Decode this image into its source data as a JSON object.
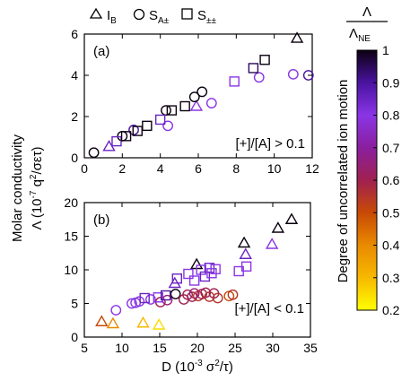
{
  "chart_data": [
    {
      "type": "scatter",
      "panel_label": "(a)",
      "annotation": "[+]/[A] > 0.1",
      "xlim": [
        0,
        12
      ],
      "ylim": [
        0,
        6
      ],
      "xticks": [
        0,
        2,
        4,
        6,
        8,
        10,
        12
      ],
      "yticks": [
        0,
        2,
        4,
        6
      ],
      "series": [
        {
          "name": "I_B",
          "marker": "triangle",
          "points": [
            {
              "x": 1.3,
              "y": 0.55,
              "c": 0.85
            },
            {
              "x": 5.9,
              "y": 2.5,
              "c": 0.8
            },
            {
              "x": 11.2,
              "y": 5.8,
              "c": 1.0
            }
          ]
        },
        {
          "name": "S_A±",
          "marker": "circle",
          "points": [
            {
              "x": 0.5,
              "y": 0.25,
              "c": 1.0
            },
            {
              "x": 2.0,
              "y": 1.05,
              "c": 1.0
            },
            {
              "x": 2.6,
              "y": 1.35,
              "c": 0.9
            },
            {
              "x": 4.3,
              "y": 2.3,
              "c": 1.0
            },
            {
              "x": 4.4,
              "y": 1.55,
              "c": 0.8
            },
            {
              "x": 5.8,
              "y": 2.95,
              "c": 1.0
            },
            {
              "x": 6.2,
              "y": 3.2,
              "c": 1.0
            },
            {
              "x": 6.7,
              "y": 2.65,
              "c": 0.8
            },
            {
              "x": 9.2,
              "y": 3.9,
              "c": 0.8
            },
            {
              "x": 11.0,
              "y": 4.05,
              "c": 0.8
            },
            {
              "x": 11.8,
              "y": 4.0,
              "c": 0.9
            }
          ]
        },
        {
          "name": "S_±±",
          "marker": "square",
          "points": [
            {
              "x": 1.7,
              "y": 0.8,
              "c": 0.85
            },
            {
              "x": 2.2,
              "y": 1.05,
              "c": 1.0
            },
            {
              "x": 2.8,
              "y": 1.3,
              "c": 1.0
            },
            {
              "x": 3.3,
              "y": 1.55,
              "c": 1.0
            },
            {
              "x": 4.0,
              "y": 1.85,
              "c": 0.85
            },
            {
              "x": 4.6,
              "y": 2.3,
              "c": 1.0
            },
            {
              "x": 5.3,
              "y": 2.5,
              "c": 1.0
            },
            {
              "x": 7.9,
              "y": 3.7,
              "c": 0.8
            },
            {
              "x": 8.9,
              "y": 4.35,
              "c": 0.95
            },
            {
              "x": 9.5,
              "y": 4.75,
              "c": 1.0
            }
          ]
        }
      ]
    },
    {
      "type": "scatter",
      "panel_label": "(b)",
      "annotation": "[+]/[A] < 0.1",
      "xlim": [
        5,
        35
      ],
      "ylim": [
        0,
        20
      ],
      "xticks": [
        5,
        10,
        15,
        20,
        25,
        30,
        35
      ],
      "yticks": [
        0,
        5,
        10,
        15,
        20
      ],
      "series": [
        {
          "name": "I_B",
          "marker": "triangle",
          "points": [
            {
              "x": 7.3,
              "y": 2.3,
              "c": 0.5
            },
            {
              "x": 8.8,
              "y": 2.0,
              "c": 0.4
            },
            {
              "x": 12.8,
              "y": 2.1,
              "c": 0.3
            },
            {
              "x": 14.9,
              "y": 1.8,
              "c": 0.25
            },
            {
              "x": 17.0,
              "y": 8.0,
              "c": 0.85
            },
            {
              "x": 19.9,
              "y": 10.8,
              "c": 1.0
            },
            {
              "x": 26.2,
              "y": 14.0,
              "c": 1.0
            },
            {
              "x": 26.4,
              "y": 12.3,
              "c": 0.85
            },
            {
              "x": 29.9,
              "y": 13.8,
              "c": 0.8
            },
            {
              "x": 30.7,
              "y": 16.2,
              "c": 1.0
            },
            {
              "x": 32.5,
              "y": 17.5,
              "c": 1.0
            }
          ]
        },
        {
          "name": "S_A±",
          "marker": "circle",
          "points": [
            {
              "x": 9.2,
              "y": 4.0,
              "c": 0.8
            },
            {
              "x": 11.3,
              "y": 5.0,
              "c": 0.8
            },
            {
              "x": 11.8,
              "y": 5.1,
              "c": 0.8
            },
            {
              "x": 12.3,
              "y": 5.3,
              "c": 0.8
            },
            {
              "x": 13.8,
              "y": 5.6,
              "c": 0.8
            },
            {
              "x": 15.1,
              "y": 5.2,
              "c": 0.6
            },
            {
              "x": 16.0,
              "y": 5.5,
              "c": 0.65
            },
            {
              "x": 17.1,
              "y": 6.4,
              "c": 1.0
            },
            {
              "x": 18.2,
              "y": 5.6,
              "c": 0.6
            },
            {
              "x": 18.7,
              "y": 6.3,
              "c": 0.6
            },
            {
              "x": 19.3,
              "y": 6.0,
              "c": 0.6
            },
            {
              "x": 19.6,
              "y": 6.5,
              "c": 0.65
            },
            {
              "x": 20.1,
              "y": 6.1,
              "c": 0.55
            },
            {
              "x": 20.6,
              "y": 6.4,
              "c": 0.6
            },
            {
              "x": 21.1,
              "y": 6.6,
              "c": 0.6
            },
            {
              "x": 21.6,
              "y": 6.0,
              "c": 0.55
            },
            {
              "x": 22.2,
              "y": 6.5,
              "c": 0.6
            },
            {
              "x": 22.7,
              "y": 5.8,
              "c": 0.55
            },
            {
              "x": 24.2,
              "y": 6.1,
              "c": 0.5
            },
            {
              "x": 24.7,
              "y": 6.3,
              "c": 0.55
            }
          ]
        },
        {
          "name": "S_±±",
          "marker": "square",
          "points": [
            {
              "x": 13.0,
              "y": 5.8,
              "c": 0.85
            },
            {
              "x": 14.8,
              "y": 5.9,
              "c": 0.8
            },
            {
              "x": 15.8,
              "y": 6.2,
              "c": 0.9
            },
            {
              "x": 17.3,
              "y": 8.7,
              "c": 0.85
            },
            {
              "x": 18.8,
              "y": 9.4,
              "c": 0.8
            },
            {
              "x": 19.6,
              "y": 8.4,
              "c": 0.8
            },
            {
              "x": 20.5,
              "y": 10.0,
              "c": 0.8
            },
            {
              "x": 21.0,
              "y": 9.0,
              "c": 0.85
            },
            {
              "x": 21.6,
              "y": 10.3,
              "c": 0.85
            },
            {
              "x": 21.9,
              "y": 9.5,
              "c": 0.8
            },
            {
              "x": 22.4,
              "y": 10.1,
              "c": 0.8
            },
            {
              "x": 25.5,
              "y": 9.8,
              "c": 0.8
            },
            {
              "x": 26.5,
              "y": 10.5,
              "c": 0.8
            }
          ]
        }
      ]
    }
  ],
  "legend": [
    {
      "marker": "triangle",
      "label": "I",
      "sub": "B"
    },
    {
      "marker": "circle",
      "label": "S",
      "sub": "A±"
    },
    {
      "marker": "square",
      "label": "S",
      "sub": "±±"
    }
  ],
  "ylabel_line1": "Molar conductivity",
  "ylabel_line2_main": "Λ (10",
  "ylabel_line2_exp": "-7",
  "ylabel_line2_mid": " q",
  "ylabel_line2_exp2": "2",
  "ylabel_line2_end": "/σετ)",
  "xlabel_main": "D (10",
  "xlabel_exp": "-3",
  "xlabel_mid": " σ",
  "xlabel_exp2": "2",
  "xlabel_end": "/τ)",
  "colorbar": {
    "title_num": "Λ",
    "title_den_main": "Λ",
    "title_den_sub": "NE",
    "label": "Degree of uncorrelated ion motion",
    "range": [
      0.2,
      1.0
    ],
    "ticks": [
      "1",
      "0.9",
      "0.8",
      "0.7",
      "0.6",
      "0.5",
      "0.4",
      "0.3",
      "0.2"
    ]
  }
}
